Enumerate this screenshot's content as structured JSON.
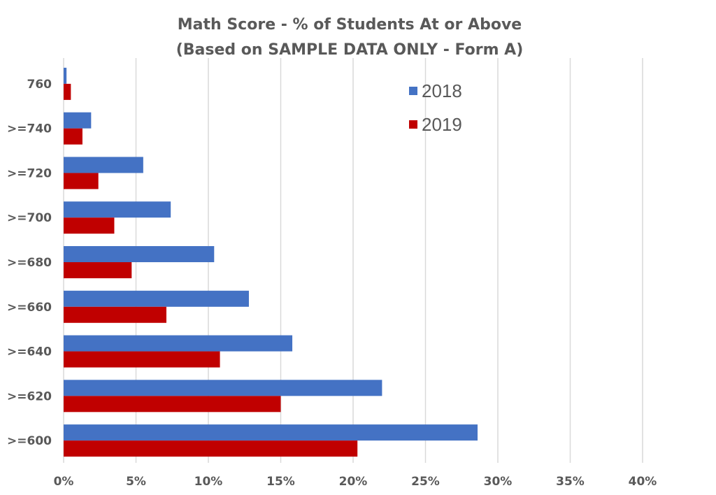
{
  "chart_data": {
    "type": "bar",
    "orientation": "horizontal",
    "title": "Math Score - % of Students At or Above",
    "subtitle": "(Based on SAMPLE DATA ONLY - Form A)",
    "categories": [
      "760",
      ">=740",
      ">=720",
      ">=700",
      ">=680",
      ">=660",
      ">=640",
      ">=620",
      ">=600"
    ],
    "series": [
      {
        "name": "2018",
        "color": "#4472C4",
        "values": [
          0.2,
          1.9,
          5.5,
          7.4,
          10.4,
          12.8,
          15.8,
          22.0,
          28.6
        ]
      },
      {
        "name": "2019",
        "color": "#C00000",
        "values": [
          0.5,
          1.3,
          2.4,
          3.5,
          4.7,
          7.1,
          10.8,
          15.0,
          20.3
        ]
      }
    ],
    "xlim": [
      0,
      40
    ],
    "x_ticks": [
      "0%",
      "5%",
      "10%",
      "15%",
      "20%",
      "25%",
      "30%",
      "35%",
      "40%"
    ],
    "x_tick_values": [
      0,
      5,
      10,
      15,
      20,
      25,
      30,
      35,
      40
    ],
    "xlabel": "",
    "ylabel": "",
    "grid": "vertical",
    "legend_position": "top-right"
  }
}
